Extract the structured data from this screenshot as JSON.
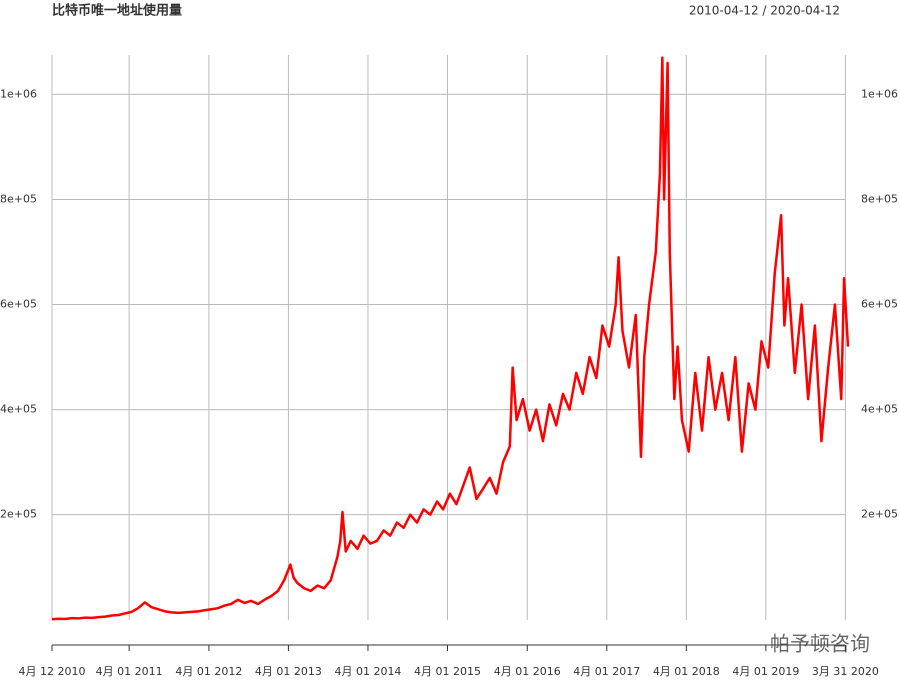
{
  "chart_data": {
    "type": "line",
    "title": "比特币唯一地址使用量",
    "subtitle": "2010-04-12 / 2020-04-12",
    "watermark": "帕予顿咨询",
    "x": [
      "2010-04-12",
      "2010-05-12",
      "2010-06-12",
      "2010-07-12",
      "2010-08-12",
      "2010-09-12",
      "2010-10-12",
      "2010-11-12",
      "2010-12-12",
      "2011-01-12",
      "2011-02-12",
      "2011-03-12",
      "2011-04-12",
      "2011-05-12",
      "2011-06-12",
      "2011-07-12",
      "2011-08-12",
      "2011-09-12",
      "2011-10-12",
      "2011-11-12",
      "2011-12-12",
      "2012-01-12",
      "2012-02-12",
      "2012-03-12",
      "2012-04-12",
      "2012-05-12",
      "2012-06-12",
      "2012-07-12",
      "2012-08-12",
      "2012-09-12",
      "2012-10-12",
      "2012-11-12",
      "2012-12-12",
      "2013-01-12",
      "2013-02-12",
      "2013-03-12",
      "2013-04-10",
      "2013-04-25",
      "2013-05-12",
      "2013-06-12",
      "2013-07-12",
      "2013-08-12",
      "2013-09-12",
      "2013-10-12",
      "2013-11-12",
      "2013-11-25",
      "2013-12-05",
      "2013-12-20",
      "2014-01-12",
      "2014-02-12",
      "2014-03-12",
      "2014-04-12",
      "2014-05-12",
      "2014-06-12",
      "2014-07-12",
      "2014-08-12",
      "2014-09-12",
      "2014-10-12",
      "2014-11-12",
      "2014-12-12",
      "2015-01-12",
      "2015-02-12",
      "2015-03-12",
      "2015-04-12",
      "2015-05-12",
      "2015-06-12",
      "2015-07-12",
      "2015-08-12",
      "2015-09-12",
      "2015-10-12",
      "2015-11-12",
      "2015-12-12",
      "2016-01-12",
      "2016-01-25",
      "2016-02-12",
      "2016-03-12",
      "2016-04-12",
      "2016-05-12",
      "2016-06-12",
      "2016-07-12",
      "2016-08-12",
      "2016-09-12",
      "2016-10-12",
      "2016-11-12",
      "2016-12-12",
      "2017-01-12",
      "2017-02-12",
      "2017-03-12",
      "2017-04-12",
      "2017-05-12",
      "2017-05-25",
      "2017-06-12",
      "2017-07-12",
      "2017-08-12",
      "2017-09-05",
      "2017-09-20",
      "2017-10-12",
      "2017-11-12",
      "2017-12-01",
      "2017-12-12",
      "2017-12-20",
      "2018-01-05",
      "2018-01-15",
      "2018-02-05",
      "2018-02-20",
      "2018-03-12",
      "2018-04-12",
      "2018-05-12",
      "2018-06-12",
      "2018-07-12",
      "2018-08-12",
      "2018-09-12",
      "2018-10-12",
      "2018-11-12",
      "2018-12-12",
      "2019-01-12",
      "2019-02-12",
      "2019-03-12",
      "2019-04-12",
      "2019-05-12",
      "2019-06-10",
      "2019-06-25",
      "2019-07-12",
      "2019-08-12",
      "2019-09-12",
      "2019-10-12",
      "2019-11-12",
      "2019-12-12",
      "2020-01-12",
      "2020-02-12",
      "2020-03-12",
      "2020-03-25",
      "2020-04-12"
    ],
    "series": [
      {
        "name": "唯一地址使用量",
        "color": "#ff0000",
        "values": [
          1000,
          2000,
          1500,
          3000,
          2500,
          4000,
          3500,
          5000,
          6000,
          8000,
          9000,
          12000,
          15000,
          22000,
          33000,
          24000,
          20000,
          16000,
          14000,
          13000,
          14000,
          15000,
          16000,
          18000,
          20000,
          22000,
          27000,
          30000,
          38000,
          32000,
          36000,
          30000,
          38000,
          45000,
          55000,
          75000,
          105000,
          80000,
          70000,
          60000,
          55000,
          65000,
          60000,
          75000,
          120000,
          150000,
          205000,
          130000,
          150000,
          135000,
          160000,
          145000,
          150000,
          170000,
          160000,
          185000,
          175000,
          200000,
          185000,
          210000,
          200000,
          225000,
          210000,
          240000,
          220000,
          255000,
          290000,
          230000,
          250000,
          270000,
          240000,
          300000,
          330000,
          480000,
          380000,
          420000,
          360000,
          400000,
          340000,
          410000,
          370000,
          430000,
          400000,
          470000,
          430000,
          500000,
          460000,
          560000,
          520000,
          600000,
          690000,
          550000,
          480000,
          580000,
          310000,
          500000,
          600000,
          700000,
          850000,
          1070000,
          800000,
          1060000,
          700000,
          420000,
          520000,
          380000,
          320000,
          470000,
          360000,
          500000,
          400000,
          470000,
          380000,
          500000,
          320000,
          450000,
          400000,
          530000,
          480000,
          660000,
          770000,
          560000,
          650000,
          470000,
          600000,
          420000,
          560000,
          340000,
          480000,
          600000,
          420000,
          650000,
          520000
        ]
      }
    ],
    "xlim": [
      "2010-04-12",
      "2020-04-12"
    ],
    "xticks": [
      {
        "value": "2010-04-12",
        "label": "4月 12 2010"
      },
      {
        "value": "2011-04-01",
        "label": "4月 01 2011"
      },
      {
        "value": "2012-04-01",
        "label": "4月 01 2012"
      },
      {
        "value": "2013-04-01",
        "label": "4月 01 2013"
      },
      {
        "value": "2014-04-01",
        "label": "4月 01 2014"
      },
      {
        "value": "2015-04-01",
        "label": "4月 01 2015"
      },
      {
        "value": "2016-04-01",
        "label": "4月 01 2016"
      },
      {
        "value": "2017-04-01",
        "label": "4月 01 2017"
      },
      {
        "value": "2018-04-01",
        "label": "4月 01 2018"
      },
      {
        "value": "2019-04-01",
        "label": "4月 01 2019"
      },
      {
        "value": "2020-03-31",
        "label": "3月 31 2020"
      }
    ],
    "ylim": [
      -10000,
      1075000
    ],
    "yticks": [
      {
        "value": 200000,
        "label": "2e+05"
      },
      {
        "value": 400000,
        "label": "4e+05"
      },
      {
        "value": 600000,
        "label": "6e+05"
      },
      {
        "value": 800000,
        "label": "8e+05"
      },
      {
        "value": 1000000,
        "label": "1e+06"
      }
    ],
    "grid": true
  }
}
